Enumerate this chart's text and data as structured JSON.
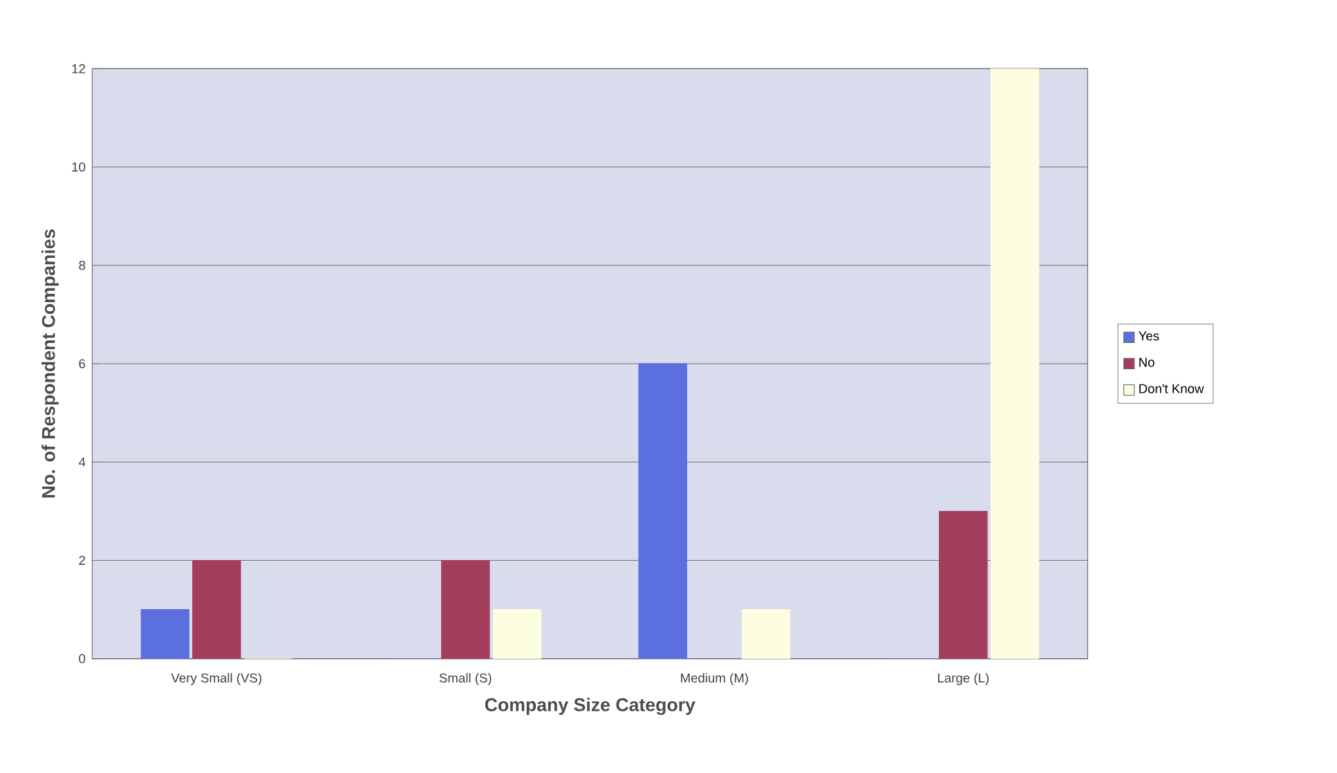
{
  "chart_data": {
    "type": "bar",
    "xlabel": "Company Size Category",
    "ylabel": "No. of Respondent Companies",
    "categories": [
      "Very Small (VS)",
      "Small (S)",
      "Medium (M)",
      "Large (L)"
    ],
    "series": [
      {
        "name": "Yes",
        "color": "#5b6fde",
        "values": [
          1,
          0,
          6,
          0
        ]
      },
      {
        "name": "No",
        "color": "#a33d5c",
        "values": [
          2,
          2,
          0,
          3
        ]
      },
      {
        "name": "Don't Know",
        "color": "#fdfde2",
        "values": [
          0,
          1,
          1,
          12
        ]
      }
    ],
    "ylim": [
      0,
      12
    ],
    "yticks": [
      0,
      2,
      4,
      6,
      8,
      10,
      12
    ],
    "grid": "y",
    "legend": "right"
  }
}
